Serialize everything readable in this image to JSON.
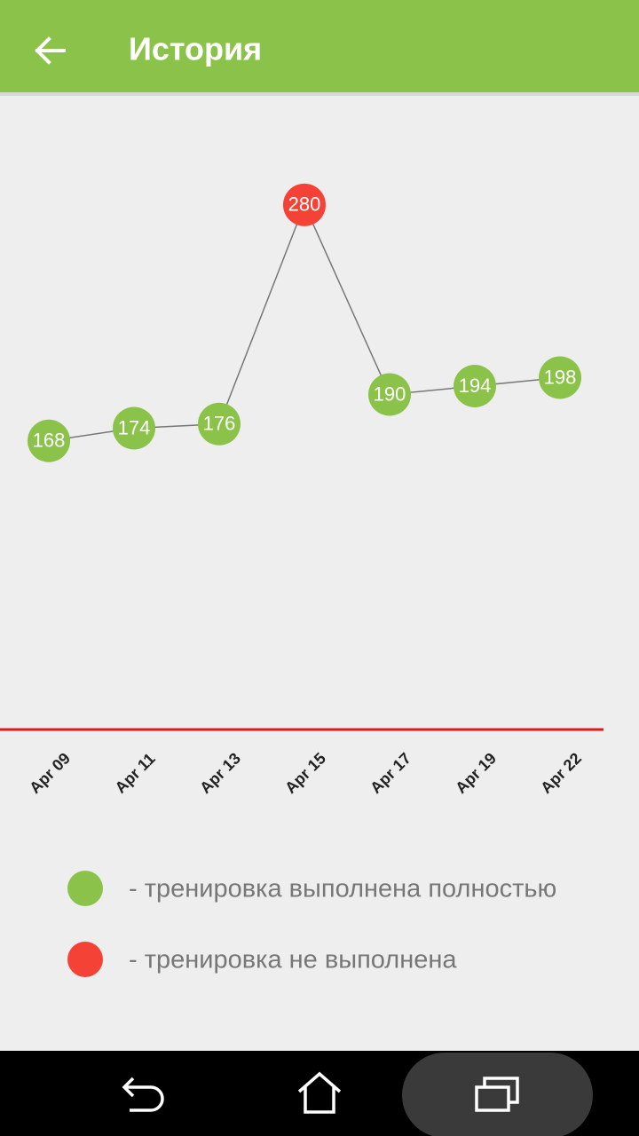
{
  "app_bar": {
    "title": "История"
  },
  "chart_data": {
    "type": "line",
    "categories": [
      "Apr 09",
      "Apr 11",
      "Apr 13",
      "Apr 15",
      "Apr 17",
      "Apr 19",
      "Apr 22"
    ],
    "values": [
      168,
      174,
      176,
      280,
      190,
      194,
      198
    ],
    "point_colors": [
      "#8bc34a",
      "#8bc34a",
      "#8bc34a",
      "#f44336",
      "#8bc34a",
      "#8bc34a",
      "#8bc34a"
    ],
    "line_color": "#777777",
    "axis_color": "#e01818",
    "ylim": [
      31,
      333
    ],
    "legend": [
      {
        "label": "- тренировка выполнена полностью",
        "color": "#8bc34a"
      },
      {
        "label": "- тренировка не выполнена",
        "color": "#f44336"
      }
    ]
  }
}
